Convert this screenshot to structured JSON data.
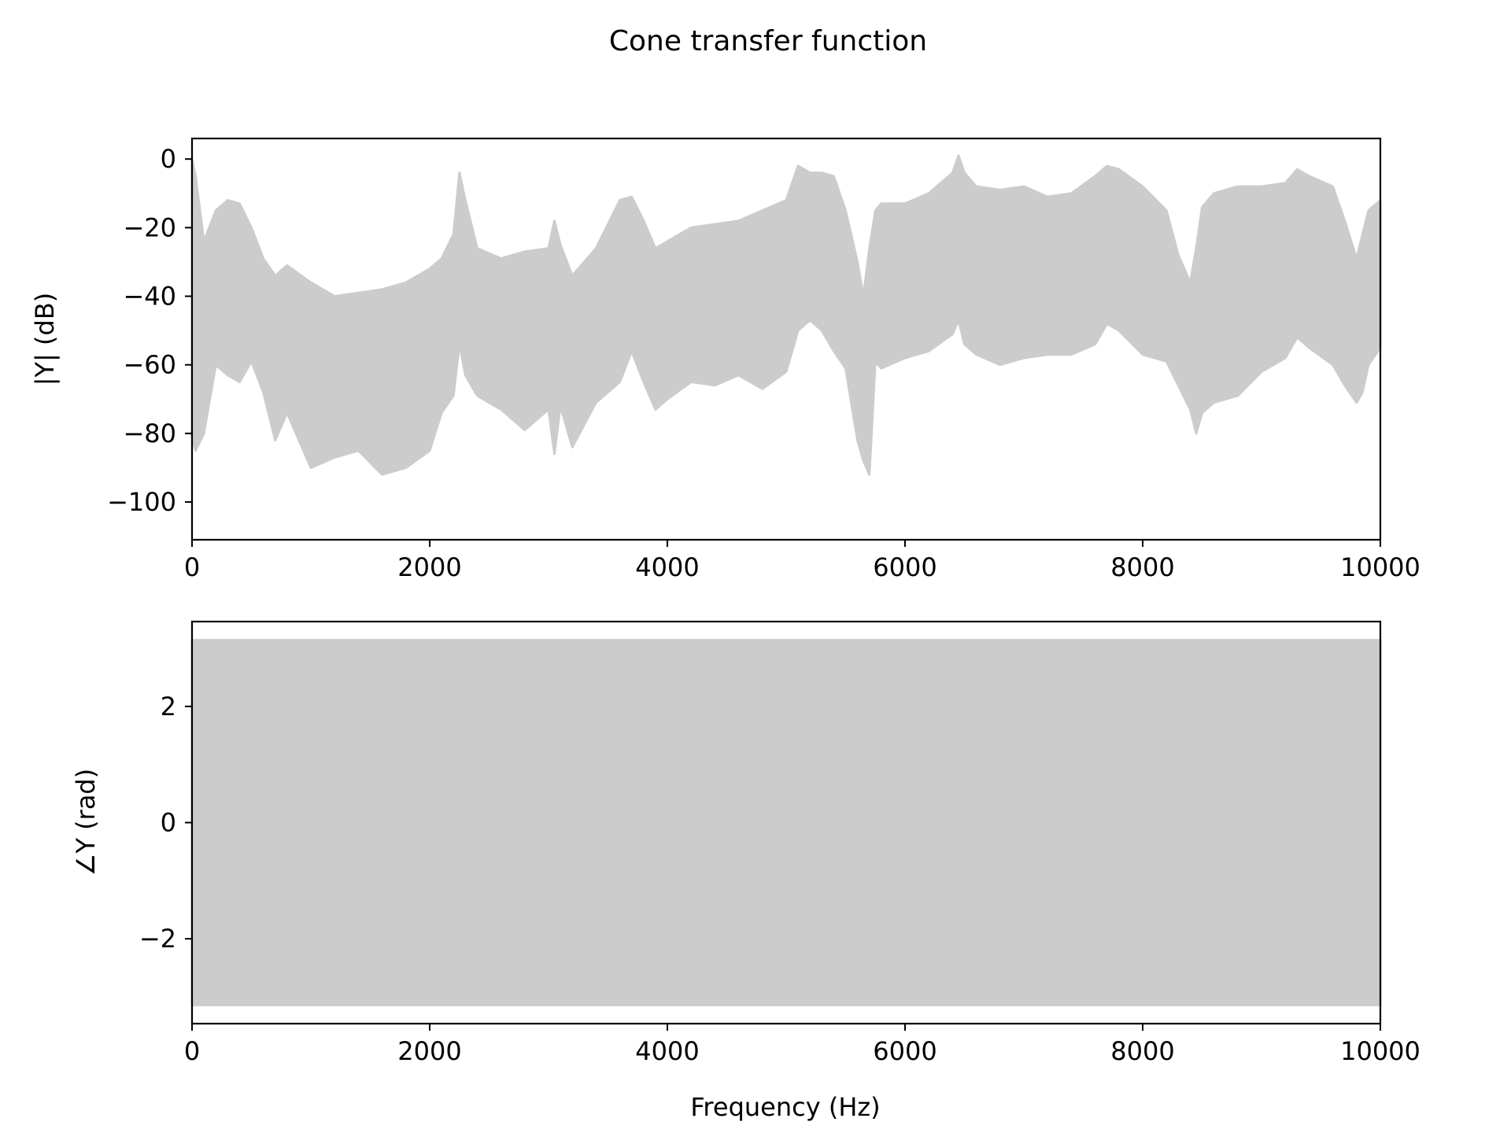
{
  "figure": {
    "title": "Cone transfer function"
  },
  "chart_data": [
    {
      "type": "line",
      "title": "",
      "xlabel": "",
      "ylabel": "|Y| (dB)",
      "xlim": [
        0,
        10000
      ],
      "ylim": [
        -111,
        6
      ],
      "xticks": [
        0,
        2000,
        4000,
        6000,
        8000,
        10000
      ],
      "yticks": [
        0,
        -20,
        -40,
        -60,
        -80,
        -100
      ],
      "tick_labels_x": [
        "0",
        "2000",
        "4000",
        "6000",
        "8000",
        "10000"
      ],
      "tick_labels_y": [
        "0",
        "−20",
        "−40",
        "−60",
        "−80",
        "−100"
      ],
      "grid": false,
      "line_color": "#cccccc",
      "series": [
        {
          "x": [
            0,
            30,
            100,
            200,
            300,
            400,
            500,
            600,
            700,
            800,
            1000,
            1200,
            1400,
            1600,
            1800,
            2000,
            2100,
            2200,
            2250,
            2300,
            2400,
            2600,
            2800,
            3000,
            3050,
            3100,
            3200,
            3400,
            3600,
            3700,
            3800,
            3900,
            4000,
            4200,
            4400,
            4600,
            4800,
            5000,
            5100,
            5200,
            5300,
            5400,
            5500,
            5600,
            5650,
            5700,
            5750,
            5800,
            6000,
            6200,
            6400,
            6450,
            6500,
            6600,
            6800,
            7000,
            7200,
            7400,
            7600,
            7700,
            7800,
            8000,
            8200,
            8300,
            8400,
            8450,
            8500,
            8600,
            8800,
            9000,
            9200,
            9300,
            9400,
            9600,
            9700,
            9800,
            9850,
            9900,
            10000
          ],
          "upper": [
            0,
            -5,
            -24,
            -15,
            -12,
            -13,
            -20,
            -29,
            -34,
            -31,
            -36,
            -40,
            -39,
            -38,
            -36,
            -32,
            -29,
            -22,
            -4,
            -12,
            -26,
            -29,
            -27,
            -26,
            -18,
            -25,
            -34,
            -26,
            -12,
            -11,
            -18,
            -26,
            -24,
            -20,
            -19,
            -18,
            -15,
            -12,
            -2,
            -4,
            -4,
            -5,
            -15,
            -30,
            -40,
            -26,
            -15,
            -13,
            -13,
            -10,
            -4,
            1,
            -4,
            -8,
            -9,
            -8,
            -11,
            -10,
            -5,
            -2,
            -3,
            -8,
            -15,
            -28,
            -36,
            -26,
            -14,
            -10,
            -8,
            -8,
            -7,
            -3,
            -5,
            -8,
            -18,
            -29,
            -22,
            -15,
            -12
          ],
          "lower": [
            -81,
            -85,
            -80,
            -60,
            -63,
            -65,
            -59,
            -68,
            -82,
            -74,
            -90,
            -87,
            -85,
            -92,
            -90,
            -85,
            -74,
            -69,
            -54,
            -63,
            -69,
            -73,
            -79,
            -73,
            -86,
            -72,
            -84,
            -71,
            -65,
            -56,
            -65,
            -73,
            -70,
            -65,
            -66,
            -63,
            -67,
            -62,
            -50,
            -47,
            -50,
            -56,
            -61,
            -82,
            -88,
            -92,
            -59,
            -61,
            -58,
            -56,
            -51,
            -47,
            -54,
            -57,
            -60,
            -58,
            -57,
            -57,
            -54,
            -48,
            -50,
            -57,
            -59,
            -66,
            -73,
            -80,
            -74,
            -71,
            -69,
            -62,
            -58,
            -52,
            -55,
            -60,
            -66,
            -71,
            -68,
            -60,
            -55
          ]
        }
      ]
    },
    {
      "type": "line",
      "title": "",
      "xlabel": "Frequency (Hz)",
      "ylabel": "∠Y (rad)",
      "xlim": [
        0,
        10000
      ],
      "ylim": [
        -3.46,
        3.46
      ],
      "xticks": [
        0,
        2000,
        4000,
        6000,
        8000,
        10000
      ],
      "yticks": [
        2,
        0,
        -2
      ],
      "tick_labels_x": [
        "0",
        "2000",
        "4000",
        "6000",
        "8000",
        "10000"
      ],
      "tick_labels_y": [
        "2",
        "0",
        "−2"
      ],
      "grid": false,
      "line_color": "#cccccc",
      "series": [
        {
          "x": [
            0,
            10000
          ],
          "upper": [
            3.14,
            3.14
          ],
          "lower": [
            -3.14,
            -3.14
          ]
        }
      ]
    }
  ]
}
